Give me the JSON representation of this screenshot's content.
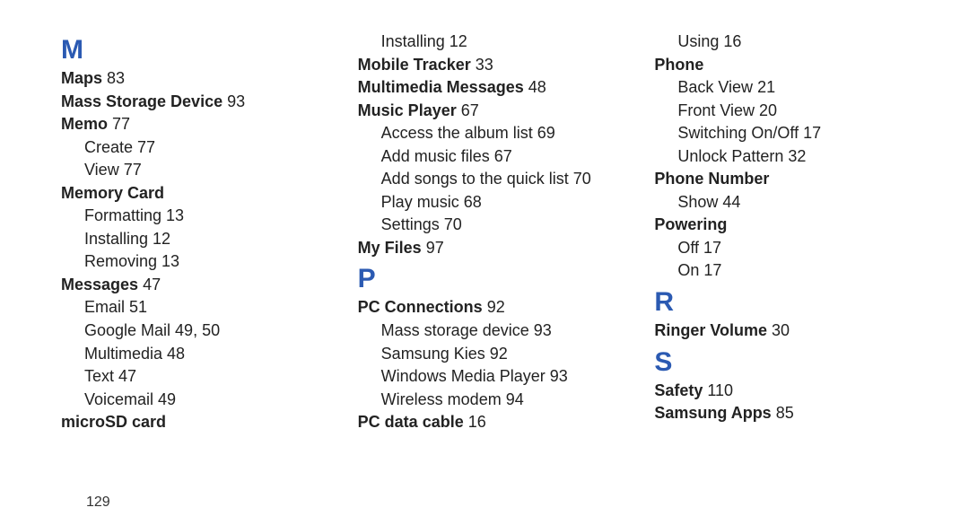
{
  "colors": {
    "letter": "#2b5ab2",
    "text": "#222222",
    "background": "#ffffff"
  },
  "fontsize": {
    "letter": 30,
    "entry": 18,
    "pagenum": 16
  },
  "page_number": "129",
  "columns": [
    [
      {
        "type": "letter",
        "text": "M"
      },
      {
        "type": "entry",
        "bold": true,
        "label": "Maps",
        "page": "83"
      },
      {
        "type": "entry",
        "bold": true,
        "label": "Mass Storage Device",
        "page": "93"
      },
      {
        "type": "entry",
        "bold": true,
        "label": "Memo",
        "page": "77"
      },
      {
        "type": "sub",
        "label": "Create",
        "page": "77"
      },
      {
        "type": "sub",
        "label": "View",
        "page": "77"
      },
      {
        "type": "entry",
        "bold": true,
        "label": "Memory Card"
      },
      {
        "type": "sub",
        "label": "Formatting",
        "page": "13"
      },
      {
        "type": "sub",
        "label": "Installing",
        "page": "12"
      },
      {
        "type": "sub",
        "label": "Removing",
        "page": "13"
      },
      {
        "type": "entry",
        "bold": true,
        "label": "Messages",
        "page": "47"
      },
      {
        "type": "sub",
        "label": "Email",
        "page": "51"
      },
      {
        "type": "sub",
        "label": "Google Mail",
        "page": "49, 50"
      },
      {
        "type": "sub",
        "label": "Multimedia",
        "page": "48"
      },
      {
        "type": "sub",
        "label": "Text",
        "page": "47"
      },
      {
        "type": "sub",
        "label": "Voicemail",
        "page": "49"
      },
      {
        "type": "entry",
        "bold": true,
        "label": "microSD card"
      }
    ],
    [
      {
        "type": "sub",
        "label": "Installing",
        "page": "12"
      },
      {
        "type": "entry",
        "bold": true,
        "label": "Mobile Tracker",
        "page": "33"
      },
      {
        "type": "entry",
        "bold": true,
        "label": "Multimedia Messages",
        "page": "48"
      },
      {
        "type": "entry",
        "bold": true,
        "label": "Music Player",
        "page": "67"
      },
      {
        "type": "sub",
        "label": "Access the album list",
        "page": "69"
      },
      {
        "type": "sub",
        "label": "Add music files",
        "page": "67"
      },
      {
        "type": "sub",
        "label": "Add songs to the quick list",
        "page": "70"
      },
      {
        "type": "sub",
        "label": "Play music",
        "page": "68"
      },
      {
        "type": "sub",
        "label": "Settings",
        "page": "70"
      },
      {
        "type": "entry",
        "bold": true,
        "label": "My Files",
        "page": "97"
      },
      {
        "type": "letter",
        "text": "P"
      },
      {
        "type": "entry",
        "bold": true,
        "label": "PC Connections",
        "page": "92"
      },
      {
        "type": "sub",
        "label": "Mass storage device",
        "page": "93"
      },
      {
        "type": "sub",
        "label": "Samsung Kies",
        "page": "92"
      },
      {
        "type": "sub",
        "label": "Windows Media Player",
        "page": "93"
      },
      {
        "type": "sub",
        "label": "Wireless modem",
        "page": "94"
      },
      {
        "type": "entry",
        "bold": true,
        "label": "PC data cable",
        "page": "16"
      }
    ],
    [
      {
        "type": "sub",
        "label": "Using",
        "page": "16"
      },
      {
        "type": "entry",
        "bold": true,
        "label": "Phone"
      },
      {
        "type": "sub",
        "label": "Back View",
        "page": "21"
      },
      {
        "type": "sub",
        "label": "Front View",
        "page": "20"
      },
      {
        "type": "sub",
        "label": "Switching On/Off",
        "page": "17"
      },
      {
        "type": "sub",
        "label": "Unlock Pattern",
        "page": "32"
      },
      {
        "type": "entry",
        "bold": true,
        "label": "Phone Number"
      },
      {
        "type": "sub",
        "label": "Show",
        "page": "44"
      },
      {
        "type": "entry",
        "bold": true,
        "label": "Powering"
      },
      {
        "type": "sub",
        "label": "Off",
        "page": "17"
      },
      {
        "type": "sub",
        "label": "On",
        "page": "17"
      },
      {
        "type": "letter",
        "text": "R"
      },
      {
        "type": "entry",
        "bold": true,
        "label": "Ringer Volume",
        "page": "30"
      },
      {
        "type": "letter",
        "text": "S"
      },
      {
        "type": "entry",
        "bold": true,
        "label": "Safety",
        "page": "110"
      },
      {
        "type": "entry",
        "bold": true,
        "label": "Samsung Apps",
        "page": "85"
      }
    ]
  ]
}
